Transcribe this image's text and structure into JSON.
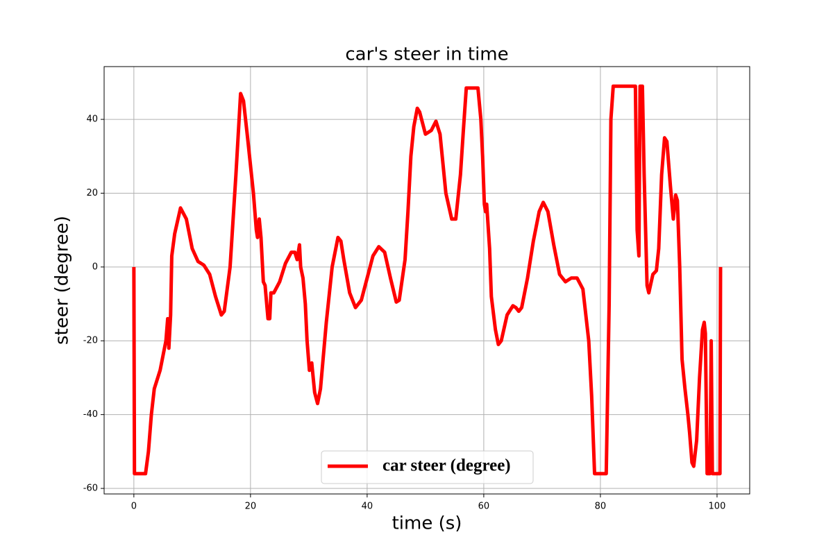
{
  "chart_data": {
    "type": "line",
    "title": "car's steer in time",
    "xlabel": "time (s)",
    "ylabel": "steer (degree)",
    "x": [
      0,
      0.1,
      2,
      2.5,
      3,
      3.5,
      4.5,
      5.5,
      5.8,
      6,
      6.3,
      6.5,
      7,
      8,
      9,
      10,
      11,
      12,
      13,
      14,
      15,
      15.5,
      16.5,
      17.5,
      18.3,
      18.8,
      19.5,
      20.5,
      21,
      21.2,
      21.5,
      21.8,
      22.2,
      22.5,
      23,
      23.3,
      23.5,
      24,
      25,
      26,
      27,
      27.6,
      28,
      28.4,
      28.6,
      29,
      29.4,
      29.7,
      30.1,
      30.5,
      31,
      31.5,
      32,
      33,
      34,
      35,
      35.5,
      36,
      37,
      38,
      39,
      40,
      41,
      42,
      43,
      44,
      45,
      45.5,
      46.5,
      47,
      47.5,
      48,
      48.6,
      49,
      50,
      51,
      51.8,
      52.5,
      53.5,
      54.5,
      55.2,
      56,
      56.5,
      57,
      59,
      59.5,
      59.8,
      60.1,
      60.3,
      60.5,
      61,
      61.3,
      62,
      62.5,
      63,
      64,
      65,
      65.5,
      66,
      66.5,
      67.5,
      68.5,
      69.5,
      70.2,
      71,
      72,
      73,
      74,
      75,
      76,
      77,
      78,
      78.5,
      79,
      81,
      81.5,
      81.8,
      82.2,
      86,
      86.3,
      86.6,
      86.8,
      87.2,
      87.5,
      88,
      88.3,
      89,
      89.6,
      90,
      90.5,
      91,
      91.4,
      92,
      92.5,
      92.9,
      93.2,
      93.6,
      94,
      94.5,
      95,
      95.3,
      95.7,
      96,
      96.5,
      97,
      97.5,
      97.8,
      98,
      98.3,
      98.8,
      99,
      99.2,
      100.5,
      100.6
    ],
    "series": [
      {
        "name": "car steer (degree)",
        "color": "#ff0000",
        "values": [
          0,
          -56,
          -56,
          -50,
          -40,
          -33,
          -28,
          -20,
          -14,
          -22,
          -13,
          3,
          9,
          16,
          13,
          5,
          1.5,
          0.5,
          -2,
          -8,
          -13,
          -12,
          0,
          25,
          47,
          45,
          35,
          20,
          10,
          8,
          13,
          8,
          -4,
          -5,
          -14,
          -14,
          -7,
          -7,
          -4,
          1,
          4,
          4,
          2,
          6,
          0,
          -3,
          -10,
          -20,
          -28,
          -26,
          -34,
          -37,
          -33,
          -15,
          0,
          8,
          7,
          2,
          -7,
          -11,
          -9,
          -3,
          3,
          5.5,
          4,
          -3,
          -9.5,
          -9,
          2,
          15,
          30,
          38,
          43,
          42,
          36,
          37,
          39.5,
          36,
          20,
          13,
          13,
          25,
          37,
          48.5,
          48.5,
          40,
          30,
          17,
          15,
          17,
          5,
          -8,
          -17,
          -21,
          -20,
          -13,
          -10.5,
          -11,
          -12,
          -11,
          -3,
          7,
          15,
          17.5,
          15,
          6,
          -2,
          -4,
          -3,
          -3,
          -6,
          -20,
          -35,
          -56,
          -56,
          -10,
          40,
          49,
          49,
          10,
          3,
          49,
          49,
          25,
          -5,
          -7,
          -2,
          -1,
          5,
          25,
          35,
          34,
          22,
          13,
          19.5,
          18,
          0,
          -25,
          -33,
          -40,
          -45,
          -53,
          -54,
          -47,
          -30,
          -17,
          -15,
          -18,
          -56,
          -56,
          -20,
          -56,
          -56,
          0
        ]
      }
    ],
    "xlim": [
      -5.1,
      105.6
    ],
    "ylim": [
      -61.5,
      54.3
    ],
    "xticks": [
      0,
      20,
      40,
      60,
      80,
      100
    ],
    "yticks": [
      -60,
      -40,
      -20,
      0,
      20,
      40
    ],
    "grid": true,
    "legend": "lower center"
  }
}
